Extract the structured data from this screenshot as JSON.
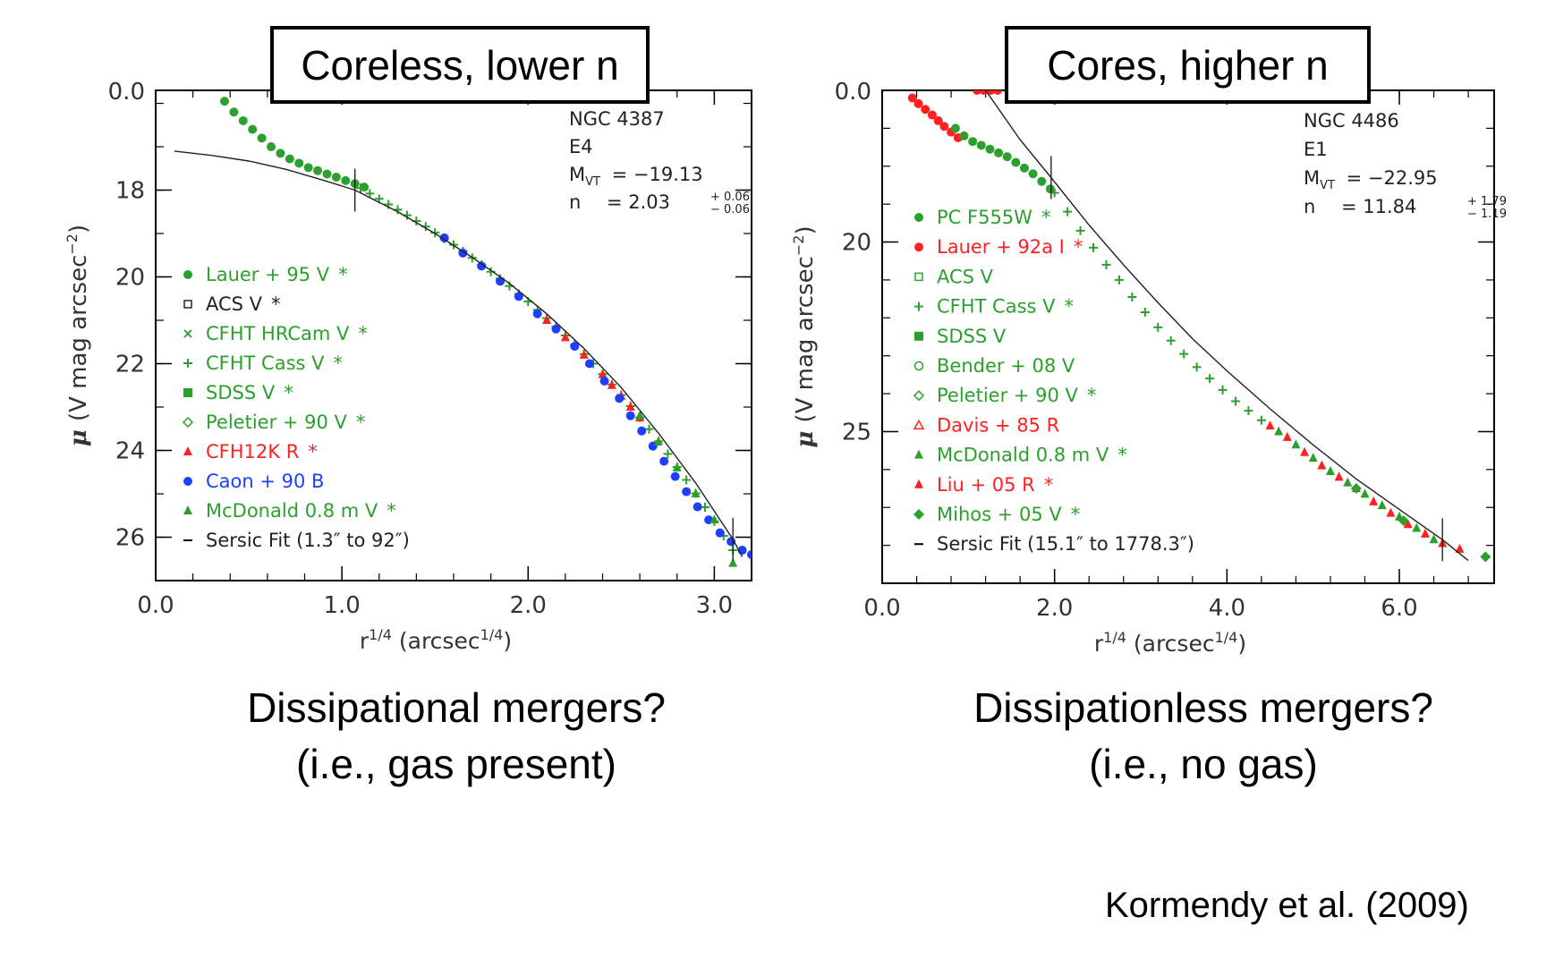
{
  "chart_data": [
    {
      "type": "scatter",
      "title": "Coreless, lower n",
      "galaxy": "NGC 4387",
      "morph": "E4",
      "mag_label": "M",
      "mag_sub": "VT",
      "mag_value": "= −19.13",
      "n_label": "n",
      "n_value": "= 2.03",
      "n_err_plus": "+ 0.06",
      "n_err_minus": "− 0.06",
      "xlabel": "r",
      "xlabel_sup": "1/4",
      "xlabel_unit": "(arcsec",
      "xlabel_unit_sup": "1/4",
      "xlabel_close": ")",
      "ylabel_mu": "μ",
      "ylabel": "(V mag arcsec",
      "ylabel_sup": "−2",
      "ylabel_close": ")",
      "xlim": [
        0.0,
        3.2
      ],
      "ylim": [
        27.0,
        15.7
      ],
      "xticks": [
        "0.0",
        "1.0",
        "2.0",
        "3.0"
      ],
      "yticks": [
        "18",
        "20",
        "22",
        "24",
        "26"
      ],
      "ytick_top_partial": "0.0",
      "fit_marks_x": [
        1.07,
        3.1
      ],
      "legend": [
        {
          "label": "Lauer + 95 V",
          "star": "*",
          "color": "#2ca02c",
          "marker": "circle"
        },
        {
          "label": "ACS V",
          "star": "*",
          "color": "#222222",
          "marker": "open-square"
        },
        {
          "label": "CFHT HRCam V",
          "star": "*",
          "color": "#2ca02c",
          "marker": "x"
        },
        {
          "label": "CFHT Cass V",
          "star": "*",
          "color": "#2ca02c",
          "marker": "plus"
        },
        {
          "label": "SDSS V",
          "star": "*",
          "color": "#2ca02c",
          "marker": "square"
        },
        {
          "label": "Peletier + 90 V",
          "star": "*",
          "color": "#2ca02c",
          "marker": "open-diamond"
        },
        {
          "label": "CFH12K R",
          "star": "*",
          "color": "#ff2020",
          "marker": "triangle"
        },
        {
          "label": "Caon + 90 B",
          "star": "",
          "color": "#1f3fff",
          "marker": "circle"
        },
        {
          "label": "McDonald 0.8 m V",
          "star": "*",
          "color": "#2ca02c",
          "marker": "triangle"
        },
        {
          "label": "Sersic Fit (1.3″ to 92″)",
          "star": "",
          "color": "#000000",
          "marker": "dash"
        }
      ],
      "sersic_fit": {
        "n": 2.03,
        "x": [
          0.1,
          0.3,
          0.5,
          0.7,
          0.9,
          1.07,
          1.3,
          1.5,
          1.7,
          1.9,
          2.1,
          2.3,
          2.5,
          2.7,
          2.9,
          3.1,
          3.15
        ],
        "y": [
          17.1,
          17.2,
          17.33,
          17.52,
          17.77,
          18.0,
          18.5,
          19.0,
          19.55,
          20.15,
          20.85,
          21.65,
          22.55,
          23.6,
          24.75,
          26.05,
          26.45
        ]
      },
      "series": [
        {
          "name": "Lauer + 95 V",
          "color": "#2ca02c",
          "marker": "circle",
          "x": [
            0.37,
            0.42,
            0.47,
            0.52,
            0.57,
            0.62,
            0.67,
            0.72,
            0.77,
            0.82,
            0.87,
            0.92,
            0.97,
            1.02,
            1.07,
            1.12
          ],
          "y": [
            15.95,
            16.2,
            16.4,
            16.6,
            16.8,
            17.0,
            17.15,
            17.28,
            17.38,
            17.48,
            17.55,
            17.63,
            17.7,
            17.78,
            17.85,
            17.93
          ]
        },
        {
          "name": "Main profile",
          "color": "#2ca02c",
          "marker": "plus",
          "x": [
            1.1,
            1.15,
            1.2,
            1.25,
            1.3,
            1.35,
            1.4,
            1.45,
            1.5,
            1.55,
            1.6,
            1.65,
            1.7,
            1.75,
            1.8,
            1.85,
            1.9,
            1.95,
            2.0,
            2.05,
            2.1,
            2.15,
            2.2,
            2.25,
            2.3,
            2.35,
            2.4,
            2.45,
            2.5,
            2.55,
            2.6,
            2.65,
            2.7,
            2.75,
            2.8,
            2.85,
            2.9,
            2.95,
            3.0,
            3.05,
            3.1
          ],
          "y": [
            17.95,
            18.08,
            18.2,
            18.33,
            18.45,
            18.58,
            18.71,
            18.84,
            18.98,
            19.12,
            19.26,
            19.41,
            19.56,
            19.72,
            19.88,
            20.04,
            20.21,
            20.39,
            20.57,
            20.76,
            20.95,
            21.15,
            21.35,
            21.56,
            21.78,
            22.0,
            22.24,
            22.48,
            22.72,
            22.98,
            23.24,
            23.51,
            23.79,
            24.08,
            24.38,
            24.68,
            24.99,
            25.31,
            25.64,
            25.97,
            26.3
          ]
        },
        {
          "name": "CFH12K R",
          "color": "#ff2020",
          "marker": "triangle",
          "x": [
            2.1,
            2.2,
            2.3,
            2.4,
            2.45,
            2.5,
            2.55,
            2.6
          ],
          "y": [
            21.0,
            21.4,
            21.8,
            22.25,
            22.5,
            22.75,
            23.0,
            23.25
          ]
        },
        {
          "name": "Caon + 90 B",
          "color": "#1f3fff",
          "marker": "circle",
          "x": [
            1.55,
            1.65,
            1.75,
            1.85,
            1.95,
            2.05,
            2.15,
            2.25,
            2.33,
            2.41,
            2.49,
            2.55,
            2.61,
            2.67,
            2.73,
            2.79,
            2.85,
            2.91,
            2.97,
            3.03,
            3.09,
            3.15,
            3.2
          ],
          "y": [
            19.1,
            19.45,
            19.75,
            20.1,
            20.45,
            20.85,
            21.2,
            21.6,
            22.0,
            22.4,
            22.8,
            23.2,
            23.55,
            23.9,
            24.25,
            24.6,
            24.95,
            25.3,
            25.6,
            25.9,
            26.1,
            26.3,
            26.4
          ]
        },
        {
          "name": "McDonald 0.8 m V",
          "color": "#2ca02c",
          "marker": "triangle",
          "x": [
            2.6,
            2.7,
            2.8,
            2.9,
            3.0,
            3.1
          ],
          "y": [
            23.2,
            23.8,
            24.4,
            25.0,
            25.6,
            26.6
          ]
        }
      ]
    },
    {
      "type": "scatter",
      "title": "Cores, higher n",
      "galaxy": "NGC 4486",
      "morph": "E1",
      "mag_label": "M",
      "mag_sub": "VT",
      "mag_value": "= −22.95",
      "n_label": "n",
      "n_value": "= 11.84",
      "n_err_plus": "+ 1.79",
      "n_err_minus": "− 1.19",
      "xlabel": "r",
      "xlabel_sup": "1/4",
      "xlabel_unit": "(arcsec",
      "xlabel_unit_sup": "1/4",
      "xlabel_close": ")",
      "ylabel_mu": "μ",
      "ylabel": "(V mag arcsec",
      "ylabel_sup": "−2",
      "ylabel_close": ")",
      "xlim": [
        0.0,
        7.1
      ],
      "ylim": [
        29.0,
        16.0
      ],
      "xticks": [
        "0.0",
        "2.0",
        "4.0",
        "6.0"
      ],
      "yticks": [
        "20",
        "25"
      ],
      "ytick_top_partial": "0.0",
      "fit_marks_x": [
        1.96,
        6.5
      ],
      "legend": [
        {
          "label": "PC F555W",
          "star": "*",
          "color": "#2ca02c",
          "marker": "circle"
        },
        {
          "label": "Lauer + 92a I",
          "star": "*",
          "color": "#ff2020",
          "marker": "circle"
        },
        {
          "label": "ACS V",
          "star": "",
          "color": "#2ca02c",
          "marker": "open-square"
        },
        {
          "label": "CFHT Cass V",
          "star": "*",
          "color": "#2ca02c",
          "marker": "plus"
        },
        {
          "label": "SDSS V",
          "star": "",
          "color": "#2ca02c",
          "marker": "square"
        },
        {
          "label": "Bender + 08 V",
          "star": "",
          "color": "#2ca02c",
          "marker": "open-circle"
        },
        {
          "label": "Peletier + 90 V",
          "star": "*",
          "color": "#2ca02c",
          "marker": "open-diamond"
        },
        {
          "label": "Davis + 85 R",
          "star": "",
          "color": "#ff2020",
          "marker": "open-triangle"
        },
        {
          "label": "McDonald 0.8 m V",
          "star": "*",
          "color": "#2ca02c",
          "marker": "triangle"
        },
        {
          "label": "Liu + 05 R",
          "star": "*",
          "color": "#ff2020",
          "marker": "triangle"
        },
        {
          "label": "Mihos + 05 V",
          "star": "*",
          "color": "#2ca02c",
          "marker": "diamond"
        },
        {
          "label": "Sersic Fit (15.1″ to 1778.3″)",
          "star": "",
          "color": "#000000",
          "marker": "dash"
        }
      ],
      "sersic_fit": {
        "n": 11.84,
        "x": [
          1.2,
          1.6,
          1.96,
          2.4,
          2.8,
          3.2,
          3.6,
          4.0,
          4.5,
          5.0,
          5.5,
          6.0,
          6.5,
          6.8
        ],
        "y": [
          16.0,
          17.3,
          18.3,
          19.55,
          20.6,
          21.6,
          22.55,
          23.4,
          24.4,
          25.35,
          26.25,
          27.05,
          27.85,
          28.4
        ]
      },
      "series": [
        {
          "name": "Lauer + 92a I",
          "color": "#ff2020",
          "marker": "circle",
          "x": [
            0.35,
            0.42,
            0.5,
            0.58,
            0.65,
            0.72,
            0.8,
            0.88,
            1.1,
            1.18,
            1.26,
            1.34
          ],
          "y": [
            16.2,
            16.35,
            16.5,
            16.65,
            16.8,
            16.95,
            17.1,
            17.25,
            16.0,
            16.0,
            16.0,
            16.0
          ]
        },
        {
          "name": "PC F555W",
          "color": "#2ca02c",
          "marker": "circle",
          "x": [
            0.85,
            0.95,
            1.05,
            1.15,
            1.25,
            1.35,
            1.45,
            1.55,
            1.65,
            1.75,
            1.85,
            1.95
          ],
          "y": [
            17.0,
            17.2,
            17.35,
            17.45,
            17.55,
            17.65,
            17.75,
            17.9,
            18.05,
            18.2,
            18.4,
            18.6
          ]
        },
        {
          "name": "Main profile",
          "color": "#2ca02c",
          "marker": "plus",
          "x": [
            2.0,
            2.15,
            2.3,
            2.45,
            2.6,
            2.75,
            2.9,
            3.05,
            3.2,
            3.35,
            3.5,
            3.65,
            3.8,
            3.95,
            4.1,
            4.25,
            4.4
          ],
          "y": [
            18.7,
            19.2,
            19.7,
            20.15,
            20.6,
            21.0,
            21.45,
            21.85,
            22.25,
            22.6,
            22.95,
            23.3,
            23.6,
            23.9,
            24.2,
            24.45,
            24.7
          ]
        },
        {
          "name": "Liu + 05 R",
          "color": "#ff2020",
          "marker": "triangle",
          "x": [
            4.5,
            4.7,
            4.9,
            5.1,
            5.3,
            5.5,
            5.7,
            5.9,
            6.1,
            6.3,
            6.5,
            6.7
          ],
          "y": [
            24.85,
            25.15,
            25.55,
            25.9,
            26.2,
            26.5,
            26.85,
            27.15,
            27.45,
            27.7,
            27.95,
            28.1
          ]
        },
        {
          "name": "McDonald 0.8 m V",
          "color": "#2ca02c",
          "marker": "triangle",
          "x": [
            4.6,
            4.8,
            5.0,
            5.2,
            5.4,
            5.6,
            5.8,
            6.0,
            6.2,
            6.4
          ],
          "y": [
            25.0,
            25.35,
            25.7,
            26.05,
            26.35,
            26.65,
            26.95,
            27.25,
            27.55,
            27.85
          ]
        },
        {
          "name": "Mihos + 05 V",
          "color": "#2ca02c",
          "marker": "diamond",
          "x": [
            5.5,
            6.05,
            7.0
          ],
          "y": [
            26.5,
            27.35,
            28.3
          ]
        }
      ]
    }
  ],
  "captions": {
    "left_line1": "Dissipational mergers?",
    "left_line2": "(i.e., gas present)",
    "right_line1": "Dissipationless mergers?",
    "right_line2": "(i.e., no gas)",
    "credit": "Kormendy et al. (2009)"
  }
}
